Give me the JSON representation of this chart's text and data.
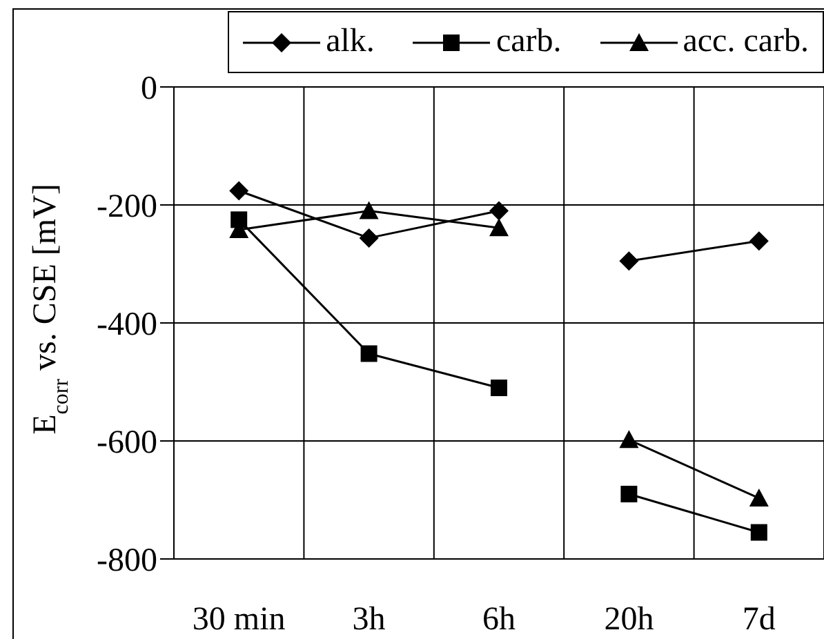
{
  "chart_data": {
    "type": "line",
    "ylabel": "E$_{corr}$ vs. CSE [mV]",
    "categories": [
      "30 min",
      "3h",
      "6h",
      "20h",
      "7d"
    ],
    "ylim": [
      -800,
      0
    ],
    "yticks": [
      -800,
      -600,
      -400,
      -200,
      0
    ],
    "grid": true,
    "legend": "top right",
    "series": [
      {
        "name": "alk.",
        "color": "#000000",
        "marker": "diamond",
        "values": [
          -176,
          -256,
          -210,
          -295,
          -261
        ]
      },
      {
        "name": "carb.",
        "color": "#000000",
        "marker": "square",
        "values": [
          -225,
          -452,
          -510,
          -690,
          -755
        ]
      },
      {
        "name": "acc. carb.",
        "color": "#000000",
        "marker": "triangle",
        "values": [
          -242,
          -210,
          -239,
          -598,
          -697
        ]
      }
    ]
  }
}
